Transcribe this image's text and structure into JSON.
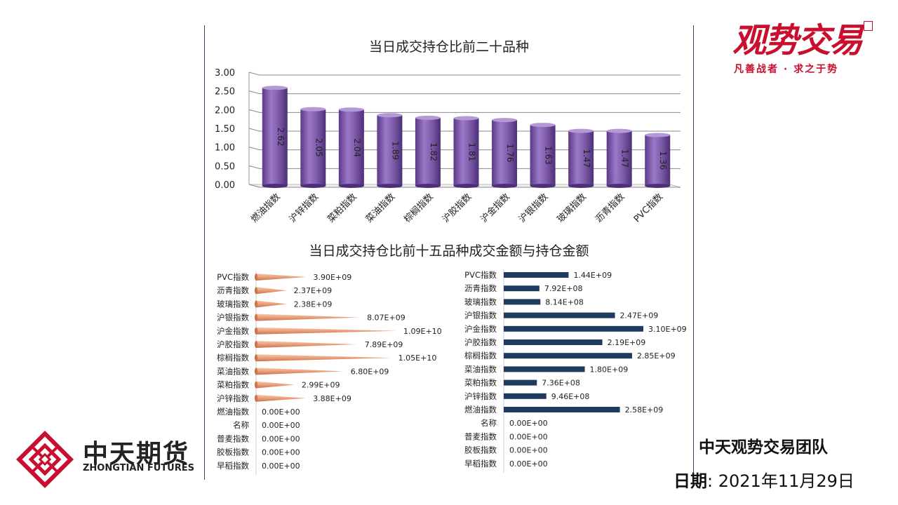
{
  "brand": {
    "logo_text": "观势交易",
    "slogan": "凡善战者 · 求之于势",
    "company_cn": "中天期货",
    "company_en": "ZHONGTIAN FUTURES",
    "team": "中天观势交易团队",
    "date_label": "日期",
    "date_sep": ":",
    "date_value": "2021年11月29日"
  },
  "colors": {
    "bar_purple": "#8461b0",
    "bar_orange": "#e8a07c",
    "bar_navy": "#1f3a5f",
    "brand_red": "#c8102e"
  },
  "chart_data": [
    {
      "type": "bar",
      "title": "当日成交持仓比前二十品种",
      "categories": [
        "燃油指数",
        "沪锌指数",
        "菜粕指数",
        "菜油指数",
        "棕榈指数",
        "沪胶指数",
        "沪金指数",
        "沪银指数",
        "玻璃指数",
        "沥青指数",
        "PVC指数"
      ],
      "values": [
        2.62,
        2.05,
        2.04,
        1.89,
        1.82,
        1.81,
        1.76,
        1.63,
        1.47,
        1.47,
        1.36
      ],
      "ylim": [
        0,
        3
      ],
      "yticks": [
        "0.00",
        "0.50",
        "1.00",
        "1.50",
        "2.00",
        "2.50",
        "3.00"
      ],
      "grid": true
    },
    {
      "type": "bar",
      "title": "当日成交持仓比前十五品种成交金额与持仓金额",
      "orientation": "horizontal",
      "categories": [
        "PVC指数",
        "沥青指数",
        "玻璃指数",
        "沪银指数",
        "沪金指数",
        "沪胶指数",
        "棕榈指数",
        "菜油指数",
        "菜粕指数",
        "沪锌指数",
        "燃油指数",
        "名称",
        "普麦指数",
        "胶板指数",
        "早稻指数"
      ],
      "value_labels": [
        "3.90E+09",
        "2.37E+09",
        "2.38E+09",
        "8.07E+09",
        "1.09E+10",
        "7.89E+09",
        "1.05E+10",
        "6.80E+09",
        "2.99E+09",
        "3.88E+09",
        "0.00E+00",
        "0.00E+00",
        "0.00E+00",
        "0.00E+00",
        "0.00E+00"
      ],
      "values": [
        3900000000.0,
        2370000000.0,
        2380000000.0,
        8070000000.0,
        10900000000.0,
        7890000000.0,
        10500000000.0,
        6800000000.0,
        2990000000.0,
        3880000000.0,
        0,
        0,
        0,
        0,
        0
      ]
    },
    {
      "type": "bar",
      "orientation": "horizontal",
      "categories": [
        "PVC指数",
        "沥青指数",
        "玻璃指数",
        "沪银指数",
        "沪金指数",
        "沪胶指数",
        "棕榈指数",
        "菜油指数",
        "菜粕指数",
        "沪锌指数",
        "燃油指数",
        "名称",
        "普麦指数",
        "胶板指数",
        "早稻指数"
      ],
      "value_labels": [
        "1.44E+09",
        "7.92E+08",
        "8.14E+08",
        "2.47E+09",
        "3.10E+09",
        "2.19E+09",
        "2.85E+09",
        "1.80E+09",
        "7.36E+08",
        "9.46E+08",
        "2.58E+09",
        "0.00E+00",
        "0.00E+00",
        "0.00E+00",
        "0.00E+00"
      ],
      "values": [
        1440000000.0,
        792000000.0,
        814000000.0,
        2470000000.0,
        3100000000.0,
        2190000000.0,
        2850000000.0,
        1800000000.0,
        736000000.0,
        946000000.0,
        2580000000.0,
        0,
        0,
        0,
        0
      ]
    }
  ]
}
